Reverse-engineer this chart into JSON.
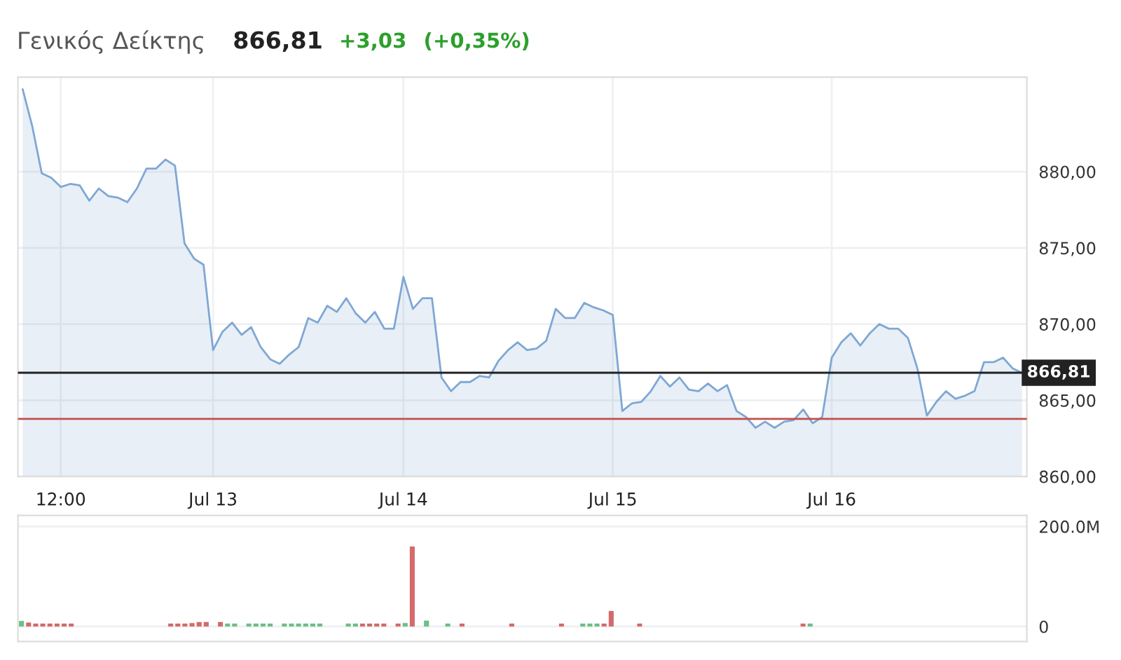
{
  "chart_data": [
    {
      "type": "area",
      "title": "Γενικός Δείκτης",
      "annotations": [
        "866,81",
        "+3,03",
        "(+0,35%)"
      ],
      "categories": [
        null,
        null,
        null,
        null,
        "12:00",
        null,
        null,
        null,
        null,
        null,
        null,
        null,
        null,
        null,
        null,
        null,
        null,
        null,
        null,
        null,
        "Jul 13",
        null,
        null,
        null,
        null,
        null,
        null,
        null,
        null,
        null,
        null,
        null,
        null,
        null,
        null,
        null,
        null,
        null,
        null,
        null,
        "Jul 14",
        null,
        null,
        null,
        null,
        null,
        null,
        null,
        null,
        null,
        null,
        null,
        null,
        null,
        null,
        null,
        null,
        null,
        null,
        null,
        null,
        null,
        "Jul 15",
        null,
        null,
        null,
        null,
        null,
        null,
        null,
        null,
        null,
        null,
        null,
        null,
        null,
        null,
        null,
        null,
        null,
        null,
        null,
        null,
        null,
        null,
        "Jul 16",
        null,
        null,
        null,
        null,
        null,
        null,
        null,
        null,
        null,
        null,
        null,
        null,
        null,
        null,
        null,
        null,
        null,
        null,
        null,
        null
      ],
      "series": [
        {
          "color": "#7fa7d4",
          "values": [
            885.4,
            883.0,
            879.9,
            879.6,
            879.0,
            879.2,
            879.1,
            878.1,
            878.9,
            878.4,
            878.3,
            878.0,
            878.9,
            880.2,
            880.2,
            880.8,
            880.4,
            875.3,
            874.3,
            873.9,
            868.3,
            869.5,
            870.1,
            869.3,
            869.8,
            868.5,
            867.7,
            867.4,
            868.0,
            868.5,
            870.4,
            870.1,
            871.2,
            870.8,
            871.7,
            870.7,
            870.1,
            870.8,
            869.7,
            869.7,
            873.1,
            871.0,
            871.7,
            871.7,
            866.5,
            865.6,
            866.2,
            866.2,
            866.6,
            866.5,
            867.6,
            868.3,
            868.8,
            868.3,
            868.4,
            868.9,
            871.0,
            870.4,
            870.4,
            871.4,
            871.1,
            870.9,
            870.6,
            864.3,
            864.8,
            864.9,
            865.6,
            866.6,
            865.9,
            866.5,
            865.7,
            865.6,
            866.1,
            865.6,
            866.0,
            864.3,
            863.9,
            863.2,
            863.6,
            863.2,
            863.6,
            863.7,
            864.4,
            863.5,
            863.9,
            867.8,
            868.8,
            869.4,
            868.6,
            869.4,
            870.0,
            869.7,
            869.7,
            869.1,
            867.1,
            864.0,
            864.9,
            865.6,
            865.1,
            865.3,
            865.6,
            867.5,
            867.5,
            867.8,
            867.1,
            866.8
          ]
        }
      ],
      "ylim": [
        860,
        886.2
      ],
      "yticks": [
        {
          "value": 860,
          "label": "860,00"
        },
        {
          "value": 865,
          "label": "865,00"
        },
        {
          "value": 870,
          "label": "870,00"
        },
        {
          "value": 875,
          "label": "875,00"
        },
        {
          "value": 880,
          "label": "880,00"
        }
      ],
      "ref_lines": [
        {
          "axis": "y",
          "value": 866.81,
          "label": "866,81",
          "color": "#222222"
        },
        {
          "axis": "y",
          "value": 863.78,
          "color": "#c0504d"
        }
      ],
      "grid": true
    },
    {
      "type": "bar",
      "categories": [
        null,
        null,
        null,
        null,
        null,
        null,
        null,
        null,
        null,
        null,
        null,
        null,
        null,
        null,
        null,
        null,
        null,
        null,
        null,
        null,
        null,
        null,
        null,
        null,
        null,
        null,
        null,
        null,
        null,
        null,
        null,
        null,
        null,
        null,
        null,
        null,
        null,
        null,
        null,
        null,
        null,
        null,
        null,
        null,
        null,
        null,
        null,
        null,
        null,
        null,
        null,
        null,
        null,
        null,
        null,
        null,
        null,
        null,
        null,
        null,
        null,
        null,
        null,
        null,
        null,
        null,
        null,
        null,
        null,
        null,
        null,
        null,
        null,
        null,
        null,
        null,
        null,
        null,
        null,
        null,
        null,
        null,
        null,
        null,
        null,
        null,
        null,
        null,
        null,
        null,
        null,
        null,
        null,
        null,
        null,
        null,
        null,
        null,
        null,
        null,
        null,
        null,
        null,
        null,
        null,
        null,
        null,
        null,
        null,
        null,
        null,
        null,
        null,
        null,
        null,
        null,
        null,
        null,
        null,
        null,
        null,
        null,
        null,
        null,
        null,
        null,
        null,
        null,
        null,
        null,
        null,
        null,
        null,
        null,
        null,
        null,
        null,
        null,
        null,
        null,
        null,
        null
      ],
      "values": [
        11,
        8,
        6,
        6,
        6,
        6,
        6,
        6,
        null,
        null,
        null,
        null,
        null,
        null,
        null,
        null,
        null,
        null,
        null,
        null,
        null,
        6,
        6,
        6,
        7,
        9,
        9,
        null,
        9,
        6,
        6,
        null,
        6,
        6,
        6,
        6,
        null,
        6,
        6,
        6,
        6,
        6,
        6,
        null,
        null,
        null,
        6,
        6,
        6,
        6,
        6,
        6,
        null,
        6,
        7,
        160,
        null,
        12,
        null,
        null,
        6,
        null,
        6,
        null,
        null,
        null,
        null,
        null,
        null,
        6,
        null,
        null,
        null,
        null,
        null,
        null,
        6,
        null,
        null,
        6,
        6,
        6,
        6,
        31,
        null,
        null,
        null,
        6,
        null,
        null,
        null,
        null,
        null,
        null,
        null,
        null,
        null,
        null,
        null,
        null,
        null,
        null,
        null,
        null,
        null,
        null,
        null,
        null,
        null,
        null,
        6,
        6,
        null,
        null,
        null,
        null,
        null,
        null,
        null,
        null,
        null,
        null,
        null,
        null,
        null,
        null,
        null,
        null,
        null,
        null,
        null,
        null,
        null,
        null,
        null,
        null,
        null,
        null,
        null,
        null,
        null,
        null
      ],
      "colors": [
        "#6cbf85",
        "#d46a6a",
        "#d46a6a",
        "#d46a6a",
        "#d46a6a",
        "#d46a6a",
        "#d46a6a",
        "#d46a6a",
        null,
        null,
        null,
        null,
        null,
        null,
        null,
        null,
        null,
        null,
        null,
        null,
        null,
        "#d46a6a",
        "#d46a6a",
        "#d46a6a",
        "#d46a6a",
        "#d46a6a",
        "#d46a6a",
        null,
        "#d46a6a",
        "#6cbf85",
        "#6cbf85",
        null,
        "#6cbf85",
        "#6cbf85",
        "#6cbf85",
        "#6cbf85",
        null,
        "#6cbf85",
        "#6cbf85",
        "#6cbf85",
        "#6cbf85",
        "#6cbf85",
        "#6cbf85",
        null,
        null,
        null,
        "#6cbf85",
        "#6cbf85",
        "#d46a6a",
        "#d46a6a",
        "#d46a6a",
        "#d46a6a",
        null,
        "#d46a6a",
        "#6cbf85",
        "#d46a6a",
        null,
        "#6cbf85",
        null,
        null,
        "#6cbf85",
        null,
        "#d46a6a",
        null,
        null,
        null,
        null,
        null,
        null,
        "#d46a6a",
        null,
        null,
        null,
        null,
        null,
        null,
        "#d46a6a",
        null,
        null,
        "#6cbf85",
        "#6cbf85",
        "#6cbf85",
        "#d46a6a",
        "#d46a6a",
        null,
        null,
        null,
        "#d46a6a",
        null,
        null,
        null,
        null,
        null,
        null,
        null,
        null,
        null,
        null,
        null,
        null,
        null,
        null,
        null,
        null,
        null,
        null,
        null,
        null,
        null,
        null,
        "#d46a6a",
        "#6cbf85",
        null,
        null,
        null,
        null,
        null,
        null,
        null,
        null,
        null,
        null,
        null,
        null,
        null,
        null,
        null,
        null,
        null,
        null,
        null,
        null,
        null,
        null,
        null,
        null,
        null,
        null,
        null,
        null,
        null,
        null
      ],
      "ylim": [
        -30,
        222
      ],
      "yticks": [
        {
          "value": 0,
          "label": "0"
        },
        {
          "value": 200,
          "label": "200.0M"
        }
      ],
      "tick_labels": "y",
      "grid": "y"
    }
  ]
}
